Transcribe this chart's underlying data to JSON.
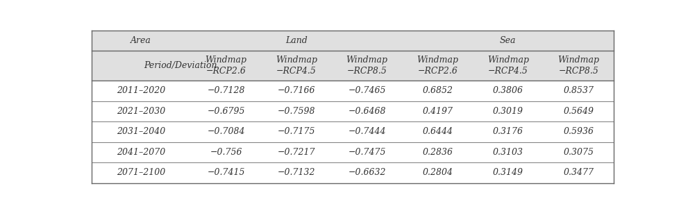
{
  "header1_labels": [
    "Area",
    "Land",
    "Sea"
  ],
  "header1_spans": [
    1,
    3,
    3
  ],
  "header2_labels": [
    "Period/Deviation",
    "Windmap\n−RCP2.6",
    "Windmap\n−RCP4.5",
    "Windmap\n−RCP8.5",
    "Windmap\n−RCP2.6",
    "Windmap\n−RCP4.5",
    "Windmap\n−RCP8.5"
  ],
  "rows": [
    [
      "2011–2020",
      "−0.7128",
      "−0.7166",
      "−0.7465",
      "0.6852",
      "0.3806",
      "0.8537"
    ],
    [
      "2021–2030",
      "−0.6795",
      "−0.7598",
      "−0.6468",
      "0.4197",
      "0.3019",
      "0.5649"
    ],
    [
      "2031–2040",
      "−0.7084",
      "−0.7175",
      "−0.7444",
      "0.6444",
      "0.3176",
      "0.5936"
    ],
    [
      "2041–2070",
      "−0.756",
      "−0.7217",
      "−0.7475",
      "0.2836",
      "0.3103",
      "0.3075"
    ],
    [
      "2071–2100",
      "−0.7415",
      "−0.7132",
      "−0.6632",
      "0.2804",
      "0.3149",
      "0.3477"
    ]
  ],
  "col_weights": [
    1.55,
    1.1,
    1.1,
    1.1,
    1.1,
    1.1,
    1.1
  ],
  "header_bg": "#e0e0e0",
  "body_bg": "#ffffff",
  "line_color": "#666666",
  "text_color": "#333333",
  "font_size": 9.0,
  "fig_width": 9.91,
  "fig_height": 3.04,
  "dpi": 100
}
